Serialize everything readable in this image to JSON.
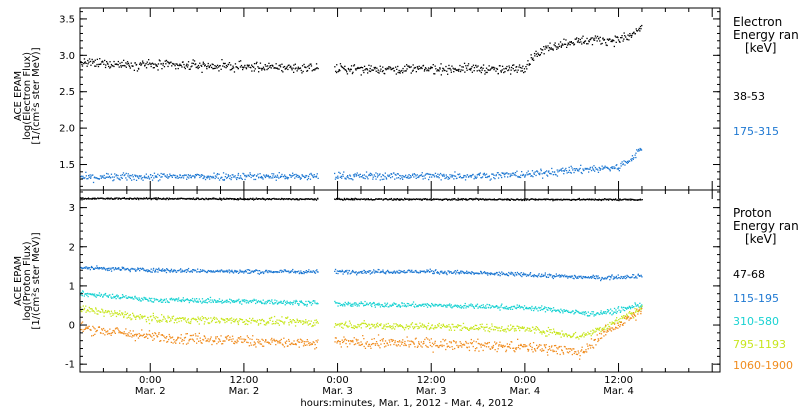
{
  "figure": {
    "xlabel": "hours:minutes, Mar.  1, 2012 - Mar.  4, 2012",
    "x_ticks": [
      {
        "x": 12,
        "time": "0:00",
        "date": "Mar. 2"
      },
      {
        "x": 24,
        "time": "12:00",
        "date": "Mar. 2"
      },
      {
        "x": 36,
        "time": "0:00",
        "date": "Mar. 3"
      },
      {
        "x": 48,
        "time": "12:00",
        "date": "Mar. 3"
      },
      {
        "x": 60,
        "time": "0:00",
        "date": "Mar. 4"
      },
      {
        "x": 72,
        "time": "12:00",
        "date": "Mar. 4"
      }
    ],
    "xlim": [
      3,
      85
    ]
  },
  "chart_data": [
    {
      "type": "scatter",
      "ylabel_lines": [
        "ACE EPAM",
        "log(Electron Flux)",
        "[1/(cm²s ster MeV)]"
      ],
      "ylim": [
        1.15,
        3.65
      ],
      "y_ticks": [
        1.5,
        2.0,
        2.5,
        3.0,
        3.5
      ],
      "y_tick_labels": [
        "1.5",
        "2.0",
        "2.5",
        "3.0",
        "3.5"
      ],
      "legend_title": [
        "Electron",
        "Energy ran",
        "[keV]"
      ],
      "series": [
        {
          "name": "38-53",
          "color": "#000000",
          "noise": 0.06,
          "x": [
            3,
            12,
            24,
            33.5,
            35.5,
            48,
            54,
            57,
            60,
            61,
            63,
            66,
            69,
            72,
            74,
            75
          ],
          "y": [
            2.9,
            2.88,
            2.85,
            2.83,
            2.82,
            2.82,
            2.83,
            2.8,
            2.85,
            3.0,
            3.12,
            3.2,
            3.22,
            3.22,
            3.3,
            3.42
          ]
        },
        {
          "name": "175-315",
          "color": "#1e78d2",
          "noise": 0.05,
          "x": [
            3,
            12,
            24,
            33.5,
            35.5,
            48,
            57,
            60,
            63,
            66,
            69,
            72,
            74,
            75
          ],
          "y": [
            1.33,
            1.34,
            1.35,
            1.34,
            1.35,
            1.35,
            1.36,
            1.37,
            1.4,
            1.43,
            1.45,
            1.47,
            1.62,
            1.77
          ]
        }
      ]
    },
    {
      "type": "scatter",
      "ylabel_lines": [
        "ACE EPAM",
        "log(Proton Flux)",
        "[1/(cm²s ster MeV)]"
      ],
      "ylim": [
        -1.2,
        3.45
      ],
      "y_ticks": [
        -1,
        0,
        1,
        2,
        3
      ],
      "y_tick_labels": [
        "-1",
        "0",
        "1",
        "2",
        "3"
      ],
      "legend_title": [
        "Proton",
        "Energy ran",
        "[keV]"
      ],
      "series": [
        {
          "name": "47-68",
          "color": "#000000",
          "noise": 0.02,
          "x": [
            3,
            33.5,
            35.5,
            75
          ],
          "y": [
            3.25,
            3.23,
            3.23,
            3.22
          ]
        },
        {
          "name": "115-195",
          "color": "#1e78d2",
          "noise": 0.05,
          "x": [
            3,
            12,
            24,
            33.5,
            35.5,
            48,
            60,
            66,
            70,
            75
          ],
          "y": [
            1.48,
            1.42,
            1.38,
            1.38,
            1.38,
            1.38,
            1.3,
            1.25,
            1.22,
            1.28
          ]
        },
        {
          "name": "310-580",
          "color": "#19d2d2",
          "noise": 0.06,
          "x": [
            3,
            12,
            24,
            33.5,
            35.5,
            48,
            60,
            64,
            68,
            71,
            75
          ],
          "y": [
            0.82,
            0.66,
            0.62,
            0.58,
            0.55,
            0.52,
            0.46,
            0.4,
            0.3,
            0.35,
            0.55
          ]
        },
        {
          "name": "795-1193",
          "color": "#c8e61e",
          "noise": 0.09,
          "x": [
            3,
            12,
            24,
            33.5,
            35.5,
            48,
            60,
            64,
            67,
            70,
            75
          ],
          "y": [
            0.42,
            0.18,
            0.12,
            0.08,
            0.02,
            -0.02,
            -0.08,
            -0.18,
            -0.28,
            -0.05,
            0.45
          ]
        },
        {
          "name": "1060-1900",
          "color": "#f08c1e",
          "noise": 0.13,
          "x": [
            3,
            12,
            24,
            33.5,
            35.5,
            48,
            60,
            64,
            67,
            70,
            75
          ],
          "y": [
            -0.05,
            -0.28,
            -0.38,
            -0.48,
            -0.42,
            -0.46,
            -0.55,
            -0.58,
            -0.72,
            -0.2,
            0.38
          ]
        }
      ]
    }
  ]
}
